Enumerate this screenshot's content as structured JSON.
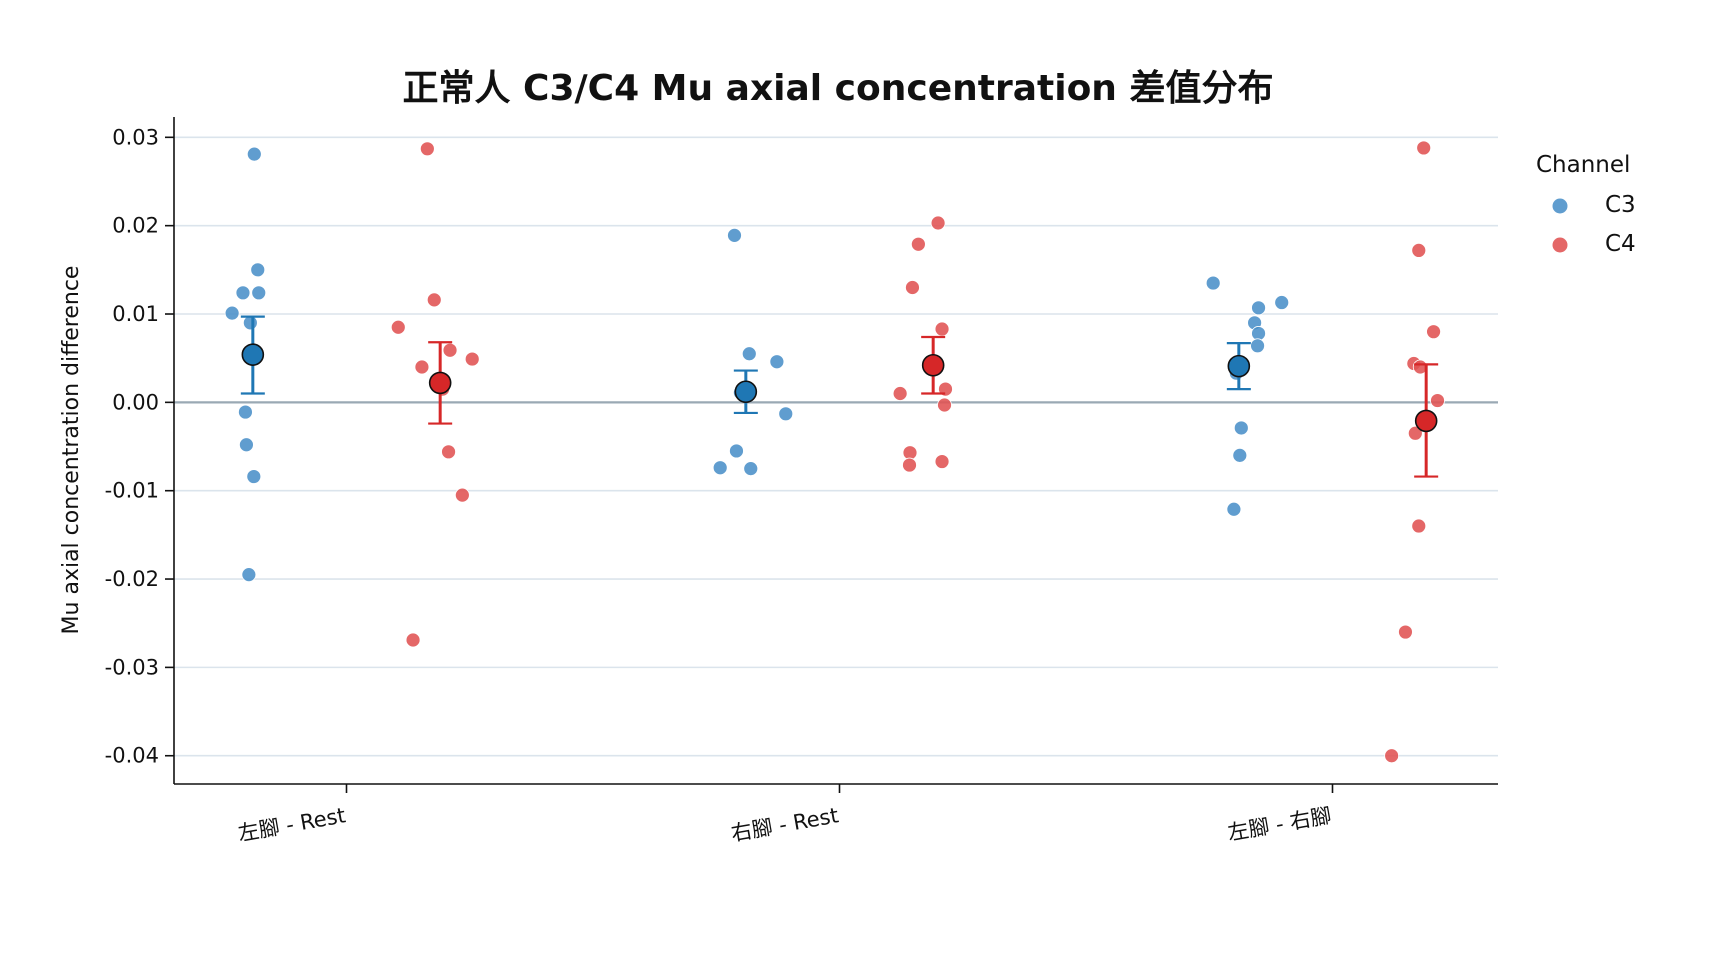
{
  "chart_data": {
    "type": "scatter",
    "title": "正常人 C3/C4 Mu axial concentration 差值分布",
    "xlabel": "",
    "ylabel": "Mu axial concentration difference",
    "categories": [
      "左腳 - Rest",
      "右腳 - Rest",
      "左腳 - 右腳"
    ],
    "ylim": [
      -0.0432,
      0.0323
    ],
    "yticks": [
      0.03,
      0.02,
      0.01,
      0.0,
      -0.01,
      -0.02,
      -0.03,
      -0.04
    ],
    "ytick_labels": [
      "0.03",
      "0.02",
      "0.01",
      "0.00",
      "-0.01",
      "-0.02",
      "-0.03",
      "-0.04"
    ],
    "grid": "horizontal",
    "zero_line": true,
    "legend": {
      "title": "Channel",
      "placement": "top-right-outside"
    },
    "series": [
      {
        "name": "C3",
        "color": "#1f77b4",
        "point_color": "#4a90c8",
        "points": [
          [
            [
              -0.187,
              0.0281
            ],
            [
              -0.18,
              0.015
            ],
            [
              -0.21,
              0.0124
            ],
            [
              -0.178,
              0.0124
            ],
            [
              -0.232,
              0.0101
            ],
            [
              -0.195,
              0.009
            ],
            [
              -0.205,
              -0.0011
            ],
            [
              -0.203,
              -0.0048
            ],
            [
              -0.188,
              -0.0084
            ],
            [
              -0.198,
              -0.0195
            ]
          ],
          [
            [
              -0.213,
              0.0189
            ],
            [
              -0.183,
              0.0055
            ],
            [
              -0.127,
              0.0046
            ],
            [
              -0.186,
              0.0015
            ],
            [
              -0.19,
              0.0012
            ],
            [
              -0.201,
              0.0011
            ],
            [
              -0.109,
              -0.0013
            ],
            [
              -0.209,
              -0.0055
            ],
            [
              -0.242,
              -0.0074
            ],
            [
              -0.18,
              -0.0075
            ]
          ],
          [
            [
              -0.242,
              0.0135
            ],
            [
              -0.103,
              0.0113
            ],
            [
              -0.15,
              0.0107
            ],
            [
              -0.158,
              0.009
            ],
            [
              -0.15,
              0.0078
            ],
            [
              -0.152,
              0.0064
            ],
            [
              -0.195,
              0.0033
            ],
            [
              -0.185,
              -0.0029
            ],
            [
              -0.188,
              -0.006
            ],
            [
              -0.2,
              -0.0121
            ]
          ]
        ],
        "mean": [
          0.0054,
          0.0012,
          0.0041
        ],
        "ci": [
          [
            0.001,
            0.0097
          ],
          [
            -0.0012,
            0.0036
          ],
          [
            0.0015,
            0.0067
          ]
        ]
      },
      {
        "name": "C4",
        "color": "#d62728",
        "point_color": "#e05252",
        "points": [
          [
            [
              0.164,
              0.0287
            ],
            [
              0.178,
              0.0116
            ],
            [
              0.105,
              0.0085
            ],
            [
              0.21,
              0.0059
            ],
            [
              0.255,
              0.0049
            ],
            [
              0.153,
              0.004
            ],
            [
              0.195,
              0.0015
            ],
            [
              0.207,
              -0.0056
            ],
            [
              0.235,
              -0.0105
            ],
            [
              0.135,
              -0.0269
            ]
          ],
          [
            [
              0.2,
              0.0203
            ],
            [
              0.16,
              0.0179
            ],
            [
              0.148,
              0.013
            ],
            [
              0.208,
              0.0083
            ],
            [
              0.123,
              0.001
            ],
            [
              0.215,
              0.0015
            ],
            [
              0.213,
              -0.0003
            ],
            [
              0.143,
              -0.0057
            ],
            [
              0.142,
              -0.0071
            ],
            [
              0.208,
              -0.0067
            ]
          ],
          [
            [
              0.185,
              0.0288
            ],
            [
              0.175,
              0.0172
            ],
            [
              0.205,
              0.008
            ],
            [
              0.165,
              0.0044
            ],
            [
              0.178,
              0.004
            ],
            [
              0.213,
              0.0002
            ],
            [
              0.168,
              -0.0035
            ],
            [
              0.175,
              -0.014
            ],
            [
              0.148,
              -0.026
            ],
            [
              0.12,
              -0.04
            ]
          ]
        ],
        "mean": [
          0.0022,
          0.0042,
          -0.0021
        ],
        "ci": [
          [
            -0.0024,
            0.0068
          ],
          [
            0.001,
            0.0074
          ],
          [
            -0.0084,
            0.0043
          ]
        ]
      }
    ]
  }
}
